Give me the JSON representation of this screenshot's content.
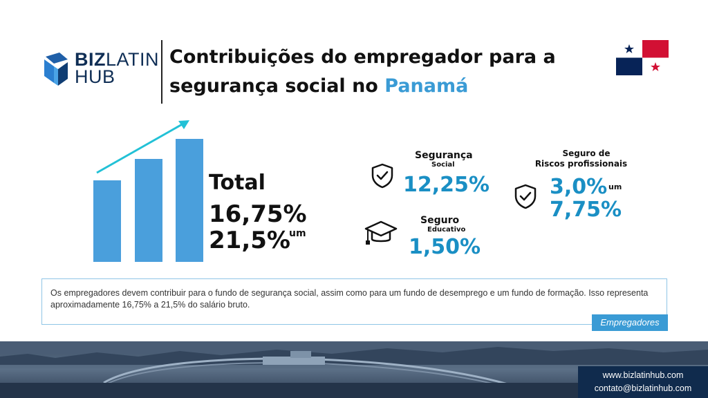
{
  "brand": {
    "logo_line1_bold": "BIZ",
    "logo_line1_light": "LATIN",
    "logo_line2": "HUB"
  },
  "title": {
    "line1": "Contribuições do empregador para a",
    "line2_prefix": "segurança social no ",
    "line2_highlight": "Panamá"
  },
  "colors": {
    "accent": "#3a9bd5",
    "value_blue": "#1a8fc4",
    "bar_blue": "#4a9fdc",
    "arrow_teal": "#22c1d6",
    "navy": "#102b4d",
    "flag_red": "#d21034",
    "flag_blue": "#072357"
  },
  "total": {
    "label": "Total",
    "value1": "16,75%",
    "value2": "21,5%",
    "connector": "um"
  },
  "seguranca_social": {
    "label_main": "Segurança",
    "label_sub": "Social",
    "value": "12,25%",
    "icon": "shield-check-icon"
  },
  "seguro_educativo": {
    "label_main": "Seguro",
    "label_sub": "Educativo",
    "value": "1,50%",
    "icon": "graduation-cap-icon"
  },
  "riscos": {
    "label_line1": "Seguro de",
    "label_line2": "Riscos profissionais",
    "value1": "3,0%",
    "connector": "um",
    "value2": "7,75%",
    "icon": "shield-check-icon"
  },
  "note": {
    "text": "Os empregadores devem contribuir para o fundo de segurança social, assim como para um fundo de desemprego e um fundo de formação. Isso representa aproximadamente 16,75% a 21,5% do salário bruto.",
    "tag": "Empregadores"
  },
  "contact": {
    "website": "www.bizlatinhub.com",
    "email": "contato@bizlatinhub.com"
  }
}
